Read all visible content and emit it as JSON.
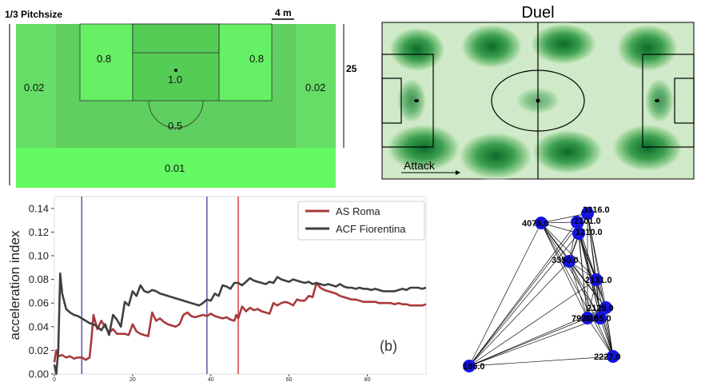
{
  "pitch_zones": {
    "pitch_size_label": "1/3 Pitchsize",
    "scale_label": "4 m",
    "width_label": "25",
    "zone_values": {
      "left_wing": "0.02",
      "right_wing": "0.02",
      "left_box_side": "0.8",
      "right_box_side": "0.8",
      "box_center": "1.0",
      "arc_zone": "0.5",
      "bottom_strip": "0.01"
    }
  },
  "duel_map": {
    "title": "Duel",
    "attack_label": "Attack"
  },
  "chart_data": {
    "type": "line",
    "xlim": [
      0,
      95
    ],
    "ylim": [
      0,
      0.15
    ],
    "yticks": [
      "0.00",
      "0.02",
      "0.04",
      "0.06",
      "0.08",
      "0.10",
      "0.12",
      "0.14"
    ],
    "xticks": [
      "0",
      "20",
      "40",
      "60",
      "80"
    ],
    "ylabel": "acceleration index",
    "panel_label": "(b)",
    "legend_position": "top-right",
    "vertical_lines": [
      {
        "x": 7,
        "color": "#3f3f9f"
      },
      {
        "x": 39,
        "color": "#3f3f9f"
      },
      {
        "x": 47,
        "color": "#d62020"
      }
    ],
    "series": [
      {
        "name": "AS Roma",
        "color": "#a83a3a",
        "points": [
          [
            0,
            0.01
          ],
          [
            0.5,
            0.02
          ],
          [
            1,
            0.015
          ],
          [
            2,
            0.016
          ],
          [
            3,
            0.014
          ],
          [
            4,
            0.015
          ],
          [
            5,
            0.013
          ],
          [
            6,
            0.014
          ],
          [
            7,
            0.014
          ],
          [
            8,
            0.012
          ],
          [
            9,
            0.014
          ],
          [
            9.5,
            0.03
          ],
          [
            10,
            0.05
          ],
          [
            11,
            0.038
          ],
          [
            12,
            0.045
          ],
          [
            13,
            0.04
          ],
          [
            14,
            0.035
          ],
          [
            15,
            0.038
          ],
          [
            16,
            0.034
          ],
          [
            18,
            0.034
          ],
          [
            19,
            0.033
          ],
          [
            20,
            0.042
          ],
          [
            21,
            0.036
          ],
          [
            22,
            0.034
          ],
          [
            23,
            0.033
          ],
          [
            24,
            0.032
          ],
          [
            25,
            0.052
          ],
          [
            26,
            0.045
          ],
          [
            27,
            0.047
          ],
          [
            28,
            0.044
          ],
          [
            29,
            0.042
          ],
          [
            30,
            0.041
          ],
          [
            31,
            0.04
          ],
          [
            32,
            0.042
          ],
          [
            33,
            0.05
          ],
          [
            34,
            0.052
          ],
          [
            35,
            0.049
          ],
          [
            36,
            0.048
          ],
          [
            37,
            0.049
          ],
          [
            38,
            0.05
          ],
          [
            39,
            0.049
          ],
          [
            40,
            0.051
          ],
          [
            41,
            0.049
          ],
          [
            42,
            0.048
          ],
          [
            43,
            0.047
          ],
          [
            44,
            0.048
          ],
          [
            45,
            0.046
          ],
          [
            46,
            0.045
          ],
          [
            46.5,
            0.05
          ],
          [
            47,
            0.047
          ],
          [
            48,
            0.057
          ],
          [
            49,
            0.053
          ],
          [
            50,
            0.056
          ],
          [
            51,
            0.054
          ],
          [
            52,
            0.055
          ],
          [
            53,
            0.053
          ],
          [
            54,
            0.052
          ],
          [
            55,
            0.051
          ],
          [
            56,
            0.06
          ],
          [
            57,
            0.058
          ],
          [
            58,
            0.06
          ],
          [
            59,
            0.061
          ],
          [
            60,
            0.06
          ],
          [
            61,
            0.058
          ],
          [
            62,
            0.063
          ],
          [
            63,
            0.062
          ],
          [
            64,
            0.062
          ],
          [
            65,
            0.066
          ],
          [
            66,
            0.065
          ],
          [
            67,
            0.077
          ],
          [
            68,
            0.073
          ],
          [
            69,
            0.071
          ],
          [
            70,
            0.07
          ],
          [
            71,
            0.069
          ],
          [
            72,
            0.068
          ],
          [
            73,
            0.066
          ],
          [
            74,
            0.065
          ],
          [
            75,
            0.064
          ],
          [
            76,
            0.063
          ],
          [
            77,
            0.063
          ],
          [
            78,
            0.062
          ],
          [
            79,
            0.061
          ],
          [
            80,
            0.061
          ],
          [
            81,
            0.061
          ],
          [
            82,
            0.061
          ],
          [
            83,
            0.06
          ],
          [
            84,
            0.06
          ],
          [
            85,
            0.06
          ],
          [
            86,
            0.06
          ],
          [
            87,
            0.059
          ],
          [
            88,
            0.06
          ],
          [
            89,
            0.059
          ],
          [
            90,
            0.059
          ],
          [
            91,
            0.058
          ],
          [
            92,
            0.058
          ],
          [
            93,
            0.058
          ],
          [
            94,
            0.058
          ],
          [
            95,
            0.059
          ]
        ]
      },
      {
        "name": "ACF Fiorentina",
        "color": "#404040",
        "points": [
          [
            0,
            0.008
          ],
          [
            0.5,
            0.0
          ],
          [
            1,
            0.02
          ],
          [
            1.5,
            0.085
          ],
          [
            2,
            0.068
          ],
          [
            3,
            0.055
          ],
          [
            4,
            0.052
          ],
          [
            5,
            0.05
          ],
          [
            6,
            0.049
          ],
          [
            7,
            0.047
          ],
          [
            8,
            0.045
          ],
          [
            9,
            0.043
          ],
          [
            10,
            0.042
          ],
          [
            11,
            0.04
          ],
          [
            12,
            0.037
          ],
          [
            13,
            0.042
          ],
          [
            14,
            0.033
          ],
          [
            15,
            0.05
          ],
          [
            16,
            0.046
          ],
          [
            17,
            0.04
          ],
          [
            18,
            0.061
          ],
          [
            19,
            0.058
          ],
          [
            20,
            0.07
          ],
          [
            21,
            0.066
          ],
          [
            22,
            0.075
          ],
          [
            23,
            0.07
          ],
          [
            24,
            0.069
          ],
          [
            25,
            0.071
          ],
          [
            26,
            0.07
          ],
          [
            27,
            0.068
          ],
          [
            28,
            0.067
          ],
          [
            29,
            0.066
          ],
          [
            30,
            0.065
          ],
          [
            31,
            0.064
          ],
          [
            32,
            0.063
          ],
          [
            33,
            0.062
          ],
          [
            34,
            0.061
          ],
          [
            35,
            0.06
          ],
          [
            36,
            0.059
          ],
          [
            37,
            0.058
          ],
          [
            38,
            0.06
          ],
          [
            39,
            0.063
          ],
          [
            40,
            0.062
          ],
          [
            41,
            0.068
          ],
          [
            42,
            0.066
          ],
          [
            43,
            0.075
          ],
          [
            44,
            0.074
          ],
          [
            45,
            0.072
          ],
          [
            46,
            0.077
          ],
          [
            47,
            0.077
          ],
          [
            48,
            0.075
          ],
          [
            49,
            0.078
          ],
          [
            50,
            0.081
          ],
          [
            51,
            0.079
          ],
          [
            52,
            0.078
          ],
          [
            53,
            0.077
          ],
          [
            54,
            0.076
          ],
          [
            55,
            0.078
          ],
          [
            56,
            0.077
          ],
          [
            57,
            0.082
          ],
          [
            58,
            0.08
          ],
          [
            59,
            0.079
          ],
          [
            60,
            0.078
          ],
          [
            61,
            0.08
          ],
          [
            62,
            0.079
          ],
          [
            63,
            0.078
          ],
          [
            64,
            0.077
          ],
          [
            65,
            0.078
          ],
          [
            66,
            0.076
          ],
          [
            67,
            0.077
          ],
          [
            68,
            0.076
          ],
          [
            69,
            0.075
          ],
          [
            70,
            0.076
          ],
          [
            71,
            0.075
          ],
          [
            72,
            0.074
          ],
          [
            73,
            0.076
          ],
          [
            74,
            0.074
          ],
          [
            75,
            0.073
          ],
          [
            76,
            0.073
          ],
          [
            77,
            0.072
          ],
          [
            78,
            0.073
          ],
          [
            79,
            0.072
          ],
          [
            80,
            0.072
          ],
          [
            81,
            0.071
          ],
          [
            82,
            0.072
          ],
          [
            83,
            0.071
          ],
          [
            84,
            0.07
          ],
          [
            85,
            0.07
          ],
          [
            86,
            0.07
          ],
          [
            87,
            0.07
          ],
          [
            88,
            0.071
          ],
          [
            89,
            0.072
          ],
          [
            90,
            0.071
          ],
          [
            91,
            0.073
          ],
          [
            92,
            0.073
          ],
          [
            93,
            0.073
          ],
          [
            94,
            0.072
          ],
          [
            95,
            0.073
          ]
        ]
      }
    ]
  },
  "network": {
    "nodes": [
      {
        "label": "4076.0"
      },
      {
        "label": "3316.0"
      },
      {
        "label": "2101.0"
      },
      {
        "label": "1210.0"
      },
      {
        "label": "3350.0"
      },
      {
        "label": "2131.0"
      },
      {
        "label": "2125.0"
      },
      {
        "label": "7920.0"
      },
      {
        "label": "8155.0"
      },
      {
        "label": "2227.0"
      },
      {
        "label": "186.0"
      }
    ]
  }
}
